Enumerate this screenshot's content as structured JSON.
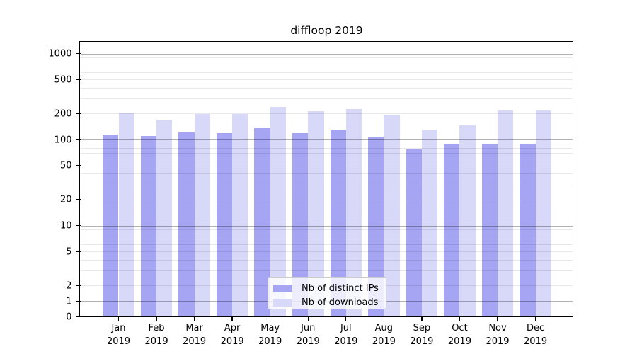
{
  "title": "diffloop 2019",
  "legend": {
    "items": [
      {
        "label": "Nb of distinct IPs",
        "series": "ips"
      },
      {
        "label": "Nb of downloads",
        "series": "downloads"
      }
    ]
  },
  "colors": {
    "ips": "#a5a5f3",
    "downloads": "#d8d8f9",
    "axis": "#000000",
    "grid_major": "rgba(0,0,0,0.30)",
    "grid_minor": "rgba(0,0,0,0.09)"
  },
  "y_axis": {
    "tick_labels": [
      "0",
      "1",
      "2",
      "5",
      "10",
      "20",
      "50",
      "100",
      "200",
      "500",
      "1000"
    ]
  },
  "chart_data": {
    "type": "bar",
    "title": "diffloop 2019",
    "categories": [
      "Jan 2019",
      "Feb 2019",
      "Mar 2019",
      "Apr 2019",
      "May 2019",
      "Jun 2019",
      "Jul 2019",
      "Aug 2019",
      "Sep 2019",
      "Oct 2019",
      "Nov 2019",
      "Dec 2019"
    ],
    "series": [
      {
        "name": "Nb of distinct IPs",
        "color": "#a5a5f3",
        "values": [
          115,
          110,
          121,
          119,
          136,
          118,
          130,
          108,
          77,
          90,
          90,
          90
        ]
      },
      {
        "name": "Nb of downloads",
        "color": "#d8d8f9",
        "values": [
          200,
          168,
          199,
          198,
          240,
          212,
          228,
          193,
          127,
          147,
          216,
          216
        ]
      }
    ],
    "yscale": "symlog",
    "yticks": [
      0,
      1,
      2,
      5,
      10,
      20,
      50,
      100,
      200,
      500,
      1000
    ],
    "ylim": [
      0,
      1100
    ],
    "grid": "both",
    "legend_position": "lower center"
  }
}
